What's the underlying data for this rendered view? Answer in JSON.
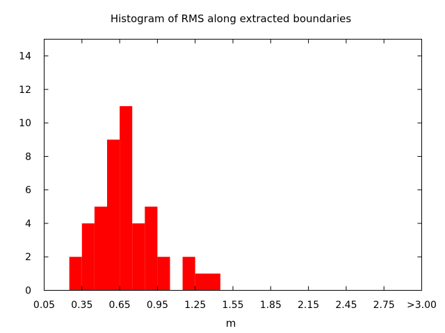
{
  "chart_data": {
    "type": "bar",
    "title": "Histogram of RMS along extracted boundaries",
    "xlabel": "m",
    "ylabel": "",
    "xlim": [
      0.05,
      3.05
    ],
    "ylim": [
      0,
      15
    ],
    "bin_width": 0.1,
    "x_ticks": [
      "0.05",
      "0.35",
      "0.65",
      "0.95",
      "1.25",
      "1.55",
      "1.85",
      "2.15",
      "2.45",
      "2.75",
      ">3.00"
    ],
    "y_ticks": [
      "0",
      "2",
      "4",
      "6",
      "8",
      "10",
      "12",
      "14"
    ],
    "bins": [
      {
        "x0": 0.25,
        "x1": 0.35,
        "count": 2
      },
      {
        "x0": 0.35,
        "x1": 0.45,
        "count": 4
      },
      {
        "x0": 0.45,
        "x1": 0.55,
        "count": 5
      },
      {
        "x0": 0.55,
        "x1": 0.65,
        "count": 9
      },
      {
        "x0": 0.65,
        "x1": 0.75,
        "count": 11
      },
      {
        "x0": 0.75,
        "x1": 0.85,
        "count": 4
      },
      {
        "x0": 0.85,
        "x1": 0.95,
        "count": 5
      },
      {
        "x0": 0.95,
        "x1": 1.05,
        "count": 2
      },
      {
        "x0": 1.15,
        "x1": 1.25,
        "count": 2
      },
      {
        "x0": 1.25,
        "x1": 1.45,
        "count": 1
      }
    ],
    "bar_color": "#ff0000",
    "grid": false,
    "legend": "none"
  }
}
